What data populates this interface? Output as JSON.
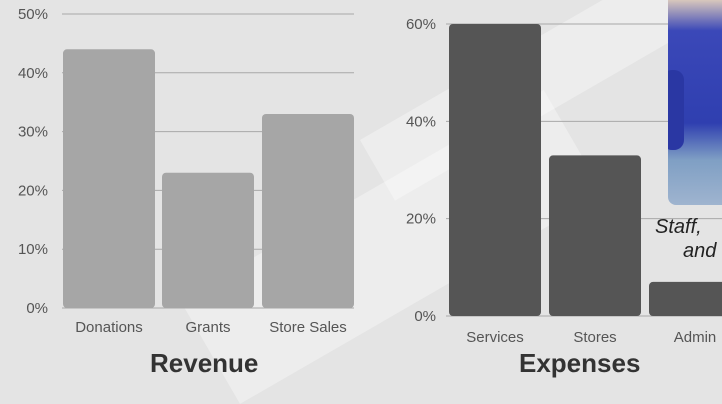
{
  "chart_data": [
    {
      "type": "bar",
      "title": "Revenue",
      "categories": [
        "Donations",
        "Grants",
        "Store Sales"
      ],
      "values": [
        44,
        23,
        33
      ],
      "ylim": [
        0,
        50
      ],
      "yticks": [
        "0%",
        "10%",
        "20%",
        "30%",
        "40%",
        "50%"
      ],
      "bar_color": "#a6a6a6",
      "grid": true
    },
    {
      "type": "bar",
      "title": "Expenses",
      "categories": [
        "Services",
        "Stores",
        "Admin"
      ],
      "values": [
        60,
        33,
        7
      ],
      "ylim": [
        0,
        60
      ],
      "yticks": [
        "0%",
        "20%",
        "40%",
        "60%"
      ],
      "bar_color": "#555555",
      "grid": true
    }
  ],
  "caption": {
    "line1": "Staff,",
    "line2": "and"
  },
  "colors": {
    "background": "#e4e4e4",
    "revenue_bar": "#a6a6a6",
    "expense_bar": "#555555",
    "axis_text": "#555555"
  }
}
